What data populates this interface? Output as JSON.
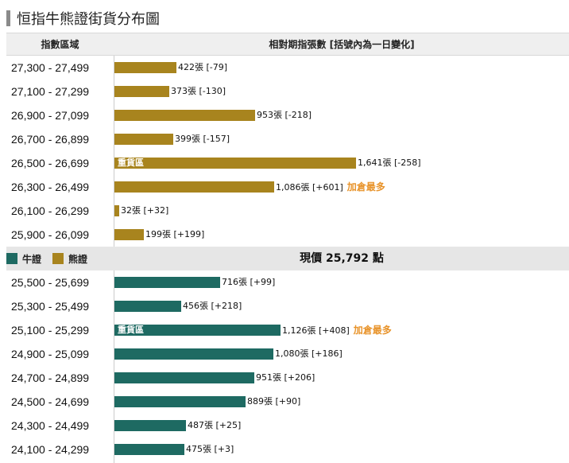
{
  "title": "恒指牛熊證街貨分布圖",
  "header": {
    "range_col": "指數區域",
    "value_col": "相對期指張數 [括號內為一日變化]"
  },
  "legend": {
    "bull_label": "牛證",
    "bear_label": "熊證"
  },
  "current_price_label": "現價 25,792 點",
  "colors": {
    "bear": "#a8841e",
    "bull": "#1e6a62"
  },
  "chart_data": {
    "type": "bar",
    "orientation": "horizontal",
    "unit": "張",
    "bear_rows": [
      {
        "range": "27,300 - 27,499",
        "value": 422,
        "change": "-79",
        "value_label": "422張 [-79]",
        "badge": "",
        "note": ""
      },
      {
        "range": "27,100 - 27,299",
        "value": 373,
        "change": "-130",
        "value_label": "373張 [-130]",
        "badge": "",
        "note": ""
      },
      {
        "range": "26,900 - 27,099",
        "value": 953,
        "change": "-218",
        "value_label": "953張 [-218]",
        "badge": "",
        "note": ""
      },
      {
        "range": "26,700 - 26,899",
        "value": 399,
        "change": "-157",
        "value_label": "399張 [-157]",
        "badge": "",
        "note": ""
      },
      {
        "range": "26,500 - 26,699",
        "value": 1641,
        "change": "-258",
        "value_label": "1,641張 [-258]",
        "badge": "重貨區",
        "note": ""
      },
      {
        "range": "26,300 - 26,499",
        "value": 1086,
        "change": "+601",
        "value_label": "1,086張 [+601]",
        "badge": "",
        "note": "加倉最多"
      },
      {
        "range": "26,100 - 26,299",
        "value": 32,
        "change": "+32",
        "value_label": "32張 [+32]",
        "badge": "",
        "note": ""
      },
      {
        "range": "25,900 - 26,099",
        "value": 199,
        "change": "+199",
        "value_label": "199張 [+199]",
        "badge": "",
        "note": ""
      }
    ],
    "bull_rows": [
      {
        "range": "25,500 - 25,699",
        "value": 716,
        "change": "+99",
        "value_label": "716張 [+99]",
        "badge": "",
        "note": ""
      },
      {
        "range": "25,300 - 25,499",
        "value": 456,
        "change": "+218",
        "value_label": "456張 [+218]",
        "badge": "",
        "note": ""
      },
      {
        "range": "25,100 - 25,299",
        "value": 1126,
        "change": "+408",
        "value_label": "1,126張 [+408]",
        "badge": "重貨區",
        "note": "加倉最多"
      },
      {
        "range": "24,900 - 25,099",
        "value": 1080,
        "change": "+186",
        "value_label": "1,080張 [+186]",
        "badge": "",
        "note": ""
      },
      {
        "range": "24,700 - 24,899",
        "value": 951,
        "change": "+206",
        "value_label": "951張 [+206]",
        "badge": "",
        "note": ""
      },
      {
        "range": "24,500 - 24,699",
        "value": 889,
        "change": "+90",
        "value_label": "889張 [+90]",
        "badge": "",
        "note": ""
      },
      {
        "range": "24,300 - 24,499",
        "value": 487,
        "change": "+25",
        "value_label": "487張 [+25]",
        "badge": "",
        "note": ""
      },
      {
        "range": "24,100 - 24,299",
        "value": 475,
        "change": "+3",
        "value_label": "475張 [+3]",
        "badge": "",
        "note": ""
      }
    ]
  }
}
